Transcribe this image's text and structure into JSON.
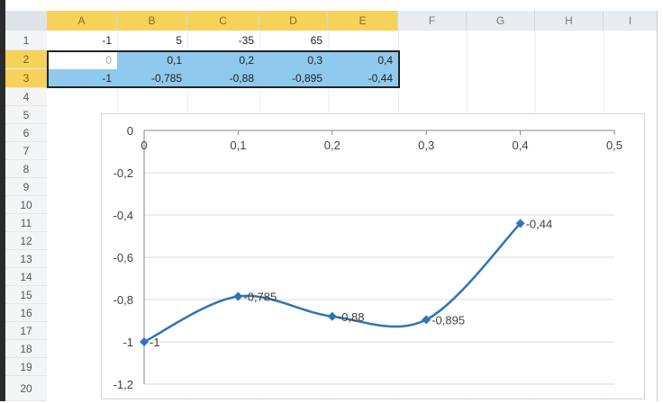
{
  "sheet": {
    "columns": [
      "A",
      "B",
      "C",
      "D",
      "E",
      "F",
      "G",
      "H",
      "I"
    ],
    "rows": [
      "1",
      "2",
      "3",
      "4",
      "5",
      "6",
      "7",
      "8",
      "9",
      "10",
      "11",
      "12",
      "13",
      "14",
      "15",
      "16",
      "17",
      "18",
      "19",
      "20"
    ],
    "row1": [
      "-1",
      "5",
      "-35",
      "65"
    ],
    "row2": [
      "0",
      "0,1",
      "0,2",
      "0,3",
      "0,4"
    ],
    "row3": [
      "-1",
      "-0,785",
      "-0,88",
      "-0,895",
      "-0,44"
    ]
  },
  "chart_data": {
    "type": "line",
    "x": [
      0,
      0.1,
      0.2,
      0.3,
      0.4
    ],
    "series": [
      {
        "values": [
          -1,
          -0.785,
          -0.88,
          -0.895,
          -0.44
        ]
      }
    ],
    "data_labels": [
      "-1",
      "-0,785",
      "-0,88",
      "-0,895",
      "-0,44"
    ],
    "x_ticks": [
      "0",
      "0,1",
      "0,2",
      "0,3",
      "0,4",
      "0,5"
    ],
    "y_ticks": [
      "0",
      "-0,2",
      "-0,4",
      "-0,6",
      "-0,8",
      "-1",
      "-1,2"
    ],
    "xlim": [
      0,
      0.5
    ],
    "ylim": [
      -1.2,
      0
    ],
    "grid": true,
    "smooth": true,
    "color": "#2e75b6",
    "xlabel": "",
    "ylabel": ""
  }
}
